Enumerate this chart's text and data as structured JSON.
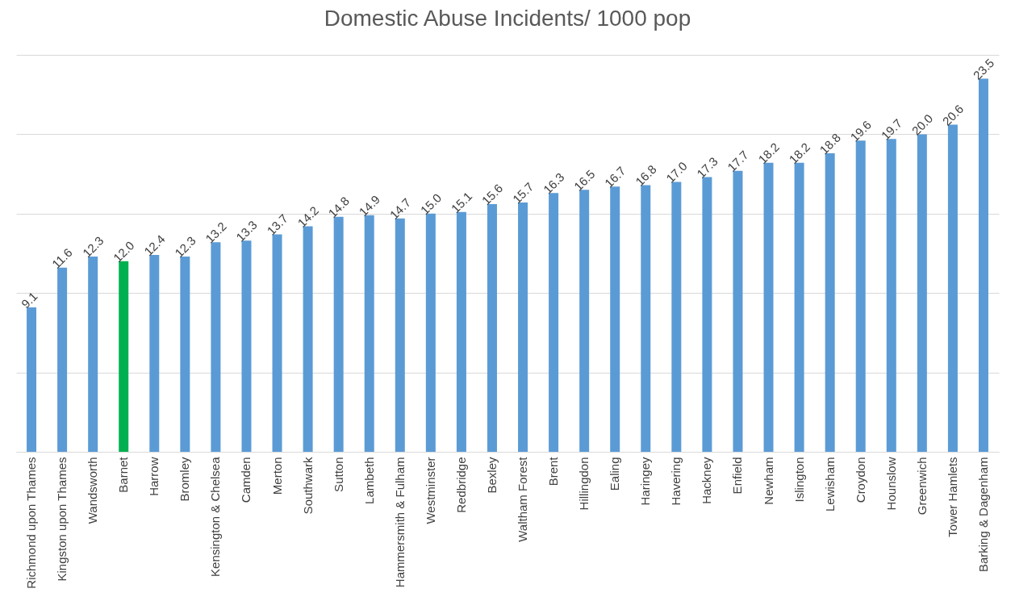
{
  "chart_data": {
    "type": "bar",
    "title": "Domestic Abuse Incidents/ 1000 pop",
    "categories": [
      "Richmond upon Thames",
      "Kingston upon Thames",
      "Wandsworth",
      "Barnet",
      "Harrow",
      "Bromley",
      "Kensington & Chelsea",
      "Camden",
      "Merton",
      "Southwark",
      "Sutton",
      "Lambeth",
      "Hammersmith & Fulham",
      "Westminster",
      "Redbridge",
      "Bexley",
      "Waltham Forest",
      "Brent",
      "Hillingdon",
      "Ealing",
      "Haringey",
      "Havering",
      "Hackney",
      "Enfield",
      "Newham",
      "Islington",
      "Lewisham",
      "Croydon",
      "Hounslow",
      "Greenwich",
      "Tower Hamlets",
      "Barking & Dagenham"
    ],
    "values": [
      9.1,
      11.6,
      12.3,
      12.0,
      12.4,
      12.3,
      13.2,
      13.3,
      13.7,
      14.2,
      14.8,
      14.9,
      14.7,
      15.0,
      15.1,
      15.6,
      15.7,
      16.3,
      16.5,
      16.7,
      16.8,
      17.0,
      17.3,
      17.7,
      18.2,
      18.2,
      18.8,
      19.6,
      19.7,
      20.0,
      20.6,
      23.5
    ],
    "colors": [
      "#5b9bd5",
      "#5b9bd5",
      "#5b9bd5",
      "#00b050",
      "#5b9bd5",
      "#5b9bd5",
      "#5b9bd5",
      "#5b9bd5",
      "#5b9bd5",
      "#5b9bd5",
      "#5b9bd5",
      "#5b9bd5",
      "#5b9bd5",
      "#5b9bd5",
      "#5b9bd5",
      "#5b9bd5",
      "#5b9bd5",
      "#5b9bd5",
      "#5b9bd5",
      "#5b9bd5",
      "#5b9bd5",
      "#5b9bd5",
      "#5b9bd5",
      "#5b9bd5",
      "#5b9bd5",
      "#5b9bd5",
      "#5b9bd5",
      "#5b9bd5",
      "#5b9bd5",
      "#5b9bd5",
      "#5b9bd5",
      "#5b9bd5"
    ],
    "ylim": [
      0,
      25
    ],
    "yticks": [
      {
        "value": 0,
        "label": null
      },
      {
        "value": 5,
        "label": null
      },
      {
        "value": 10,
        "label": null
      },
      {
        "value": 15,
        "label": null
      },
      {
        "value": 20,
        "label": null
      },
      {
        "value": 25,
        "label": null
      }
    ],
    "value_labels": [
      "9.1",
      "11.6",
      "12.3",
      "12.0",
      "12.4",
      "12.3",
      "13.2",
      "13.3",
      "13.7",
      "14.2",
      "14.8",
      "14.9",
      "14.7",
      "15.0",
      "15.1",
      "15.6",
      "15.7",
      "16.3",
      "16.5",
      "16.7",
      "16.8",
      "17.0",
      "17.3",
      "17.7",
      "18.2",
      "18.2",
      "18.8",
      "19.6",
      "19.7",
      "20.0",
      "20.6",
      "23.5"
    ],
    "grid": "y",
    "tick_labels": "x"
  }
}
